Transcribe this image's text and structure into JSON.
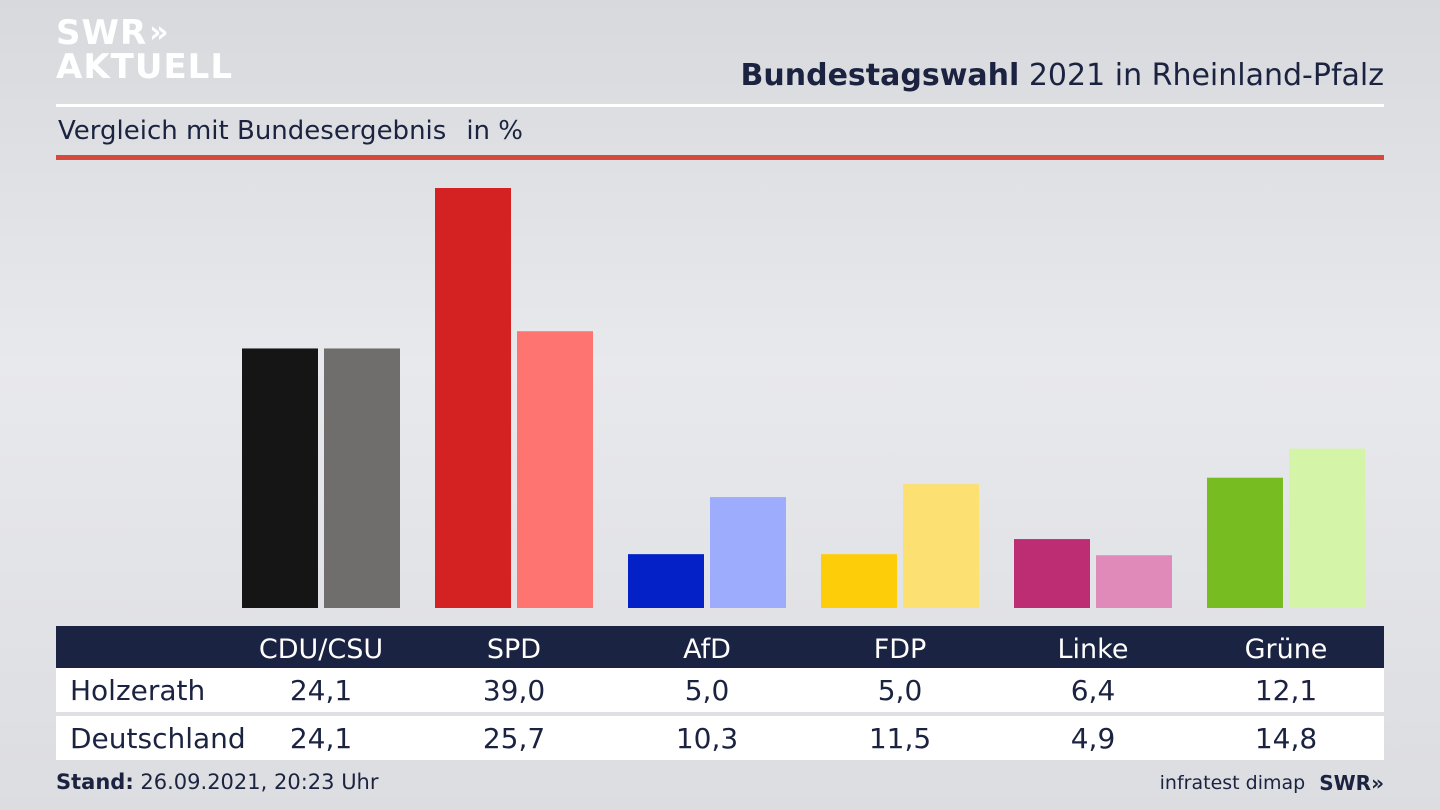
{
  "branding": {
    "logo_line1": "SWR",
    "logo_chevrons": "»",
    "logo_line2": "AKTUELL",
    "footer_source": "infratest dimap",
    "footer_brand": "SWR»"
  },
  "header": {
    "title_bold": "Bundestagswahl",
    "title_rest": "2021 in Rheinland-Pfalz",
    "subtitle": "Vergleich mit Bundesergebnis",
    "unit": "in %"
  },
  "footer": {
    "stand_label": "Stand:",
    "stand_value": "26.09.2021, 20:23 Uhr"
  },
  "colors": {
    "navy": "#1b2343",
    "accent_red": "#d6473c"
  },
  "chart_data": {
    "type": "bar",
    "title": "Bundestagswahl 2021 in Rheinland-Pfalz",
    "subtitle": "Vergleich mit Bundesergebnis",
    "unit": "in %",
    "categories": [
      "CDU/CSU",
      "SPD",
      "AfD",
      "FDP",
      "Linke",
      "Grüne"
    ],
    "series": [
      {
        "name": "Holzerath",
        "values": [
          24.1,
          39.0,
          5.0,
          5.0,
          6.4,
          12.1
        ],
        "labels": [
          "24,1",
          "39,0",
          "5,0",
          "5,0",
          "6,4",
          "12,1"
        ],
        "colors": [
          "#151515",
          "#d42121",
          "#0321c7",
          "#fdcd0a",
          "#bd2d73",
          "#77bd22"
        ]
      },
      {
        "name": "Deutschland",
        "values": [
          24.1,
          25.7,
          10.3,
          11.5,
          4.9,
          14.8
        ],
        "labels": [
          "24,1",
          "25,7",
          "10,3",
          "11,5",
          "4,9",
          "14,8"
        ],
        "colors": [
          "#706e6d",
          "#fd7470",
          "#9eacfd",
          "#fde072",
          "#df8ab8",
          "#d4f4a8"
        ]
      }
    ],
    "ylim": [
      0,
      39.0
    ],
    "grid": false,
    "legend": "table below chart"
  }
}
